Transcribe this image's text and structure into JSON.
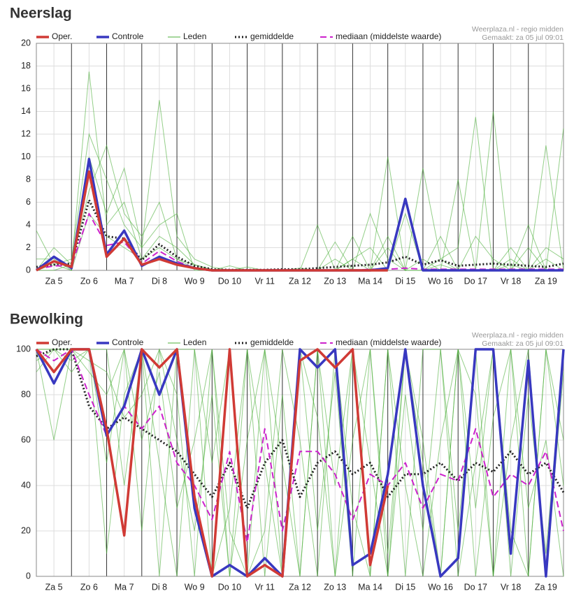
{
  "chart_data": [
    {
      "type": "line",
      "title": "Neerslag",
      "source": "Weerplaza.nl - regio midden",
      "created": "Gemaakt: za 05 jul 09:01",
      "days": [
        "Za 5",
        "Zo 6",
        "Ma 7",
        "Di 8",
        "Wo 9",
        "Do 10",
        "Vr 11",
        "Za 12",
        "Zo 13",
        "Ma 14",
        "Di 15",
        "Wo 16",
        "Do 17",
        "Vr 18",
        "Za 19"
      ],
      "ylim": [
        0,
        20
      ],
      "yticks": [
        0,
        2,
        4,
        6,
        8,
        10,
        12,
        14,
        16,
        18,
        20
      ],
      "grid": true,
      "series": [
        {
          "name": "Oper.",
          "color": "#d03a35",
          "dash": "solid",
          "values": [
            0,
            0.8,
            0.3,
            8.7,
            1.2,
            2.8,
            0.5,
            1.0,
            0.5,
            0.2,
            0,
            0,
            0,
            0,
            0,
            0,
            0,
            0,
            0,
            0,
            0,
            null,
            null,
            null,
            null,
            null,
            null,
            null,
            null,
            null,
            null
          ]
        },
        {
          "name": "Controle",
          "color": "#3838c0",
          "dash": "solid",
          "values": [
            0,
            1.2,
            0.2,
            9.8,
            1.4,
            3.5,
            0.4,
            1.2,
            0.6,
            0.2,
            0,
            0,
            0,
            0,
            0,
            0,
            0,
            0,
            0,
            0,
            0.2,
            6.3,
            0,
            0,
            0,
            0,
            0,
            0,
            0,
            0,
            0
          ]
        },
        {
          "name": "gemiddelde",
          "color": "#222222",
          "dash": "dotted",
          "values": [
            0.3,
            0.5,
            0.6,
            6.2,
            3.0,
            2.8,
            0.9,
            2.3,
            1.2,
            0.4,
            0.1,
            0.05,
            0.05,
            0.05,
            0.1,
            0.1,
            0.2,
            0.3,
            0.4,
            0.5,
            0.7,
            1.2,
            0.5,
            0.9,
            0.4,
            0.5,
            0.6,
            0.5,
            0.4,
            0.3,
            0.6
          ]
        },
        {
          "name": "mediaan (middelste waarde)",
          "color": "#cc22cc",
          "dash": "dashed",
          "values": [
            0.1,
            0.4,
            0.4,
            5.0,
            2.2,
            2.5,
            0.6,
            1.7,
            0.8,
            0.2,
            0,
            0,
            0,
            0,
            0,
            0,
            0,
            0,
            0,
            0.1,
            0.1,
            0.2,
            0.1,
            0.1,
            0.1,
            0.1,
            0.1,
            0.1,
            0.1,
            0.1,
            0.1
          ]
        }
      ],
      "members": {
        "name": "Leden",
        "color": "#4caf3a",
        "values": [
          [
            0,
            2,
            0.5,
            17.5,
            4,
            6,
            1,
            3,
            2,
            0.5,
            0,
            0,
            0,
            0,
            0,
            0,
            0,
            0,
            1,
            0,
            3,
            0,
            9,
            1,
            2,
            13.5,
            0,
            2,
            0,
            1,
            0
          ],
          [
            3.5,
            0.5,
            1,
            12,
            8,
            4,
            2,
            15,
            3,
            1,
            0.3,
            0,
            0.3,
            0,
            0,
            0,
            4,
            0,
            1,
            2,
            0,
            5,
            0,
            1,
            0,
            3,
            1,
            0,
            2,
            0,
            12.5
          ],
          [
            0,
            0,
            0.5,
            7,
            11,
            5,
            3,
            6,
            1,
            0.2,
            0,
            0.4,
            0,
            0,
            0,
            0,
            0,
            2.5,
            0,
            5,
            1,
            0,
            0,
            0.5,
            0,
            0,
            14,
            0,
            4,
            0,
            0
          ],
          [
            1,
            1,
            0,
            10,
            5,
            9,
            2,
            4,
            5,
            0,
            0,
            0,
            0,
            0,
            0,
            0,
            0,
            0,
            3,
            0,
            10,
            0,
            1,
            0,
            8,
            0,
            0,
            1,
            0,
            11,
            0
          ],
          [
            0,
            0.5,
            0,
            5,
            3,
            2,
            1,
            2,
            1,
            0.5,
            0.1,
            0,
            0,
            0,
            0,
            0.2,
            0,
            1,
            0,
            0,
            2,
            0,
            0,
            3,
            0,
            0,
            0,
            0.5,
            0,
            2,
            1
          ]
        ]
      }
    },
    {
      "type": "line",
      "title": "Bewolking",
      "source": "Weerplaza.nl - regio midden",
      "created": "Gemaakt: za 05 jul 09:01",
      "days": [
        "Za 5",
        "Zo 6",
        "Ma 7",
        "Di 8",
        "Wo 9",
        "Do 10",
        "Vr 11",
        "Za 12",
        "Zo 13",
        "Ma 14",
        "Di 15",
        "Wo 16",
        "Do 17",
        "Vr 18",
        "Za 19"
      ],
      "ylim": [
        0,
        100
      ],
      "yticks": [
        0,
        20,
        40,
        60,
        80,
        100
      ],
      "grid": true,
      "series": [
        {
          "name": "Oper.",
          "color": "#d03a35",
          "dash": "solid",
          "values": [
            100,
            90,
            100,
            100,
            65,
            18,
            100,
            92,
            100,
            35,
            0,
            100,
            0,
            5,
            0,
            95,
            100,
            92,
            100,
            5,
            40,
            null,
            null,
            null,
            null,
            null,
            null,
            null,
            null,
            null,
            null
          ]
        },
        {
          "name": "Controle",
          "color": "#3838c0",
          "dash": "solid",
          "values": [
            100,
            85,
            100,
            100,
            62,
            75,
            100,
            80,
            100,
            30,
            0,
            5,
            0,
            8,
            0,
            100,
            92,
            100,
            5,
            10,
            45,
            100,
            40,
            0,
            8,
            100,
            100,
            10,
            95,
            0,
            100
          ]
        },
        {
          "name": "gemiddelde",
          "color": "#222222",
          "dash": "dotted",
          "values": [
            97,
            100,
            100,
            75,
            65,
            70,
            65,
            60,
            55,
            45,
            35,
            50,
            30,
            50,
            60,
            35,
            50,
            55,
            45,
            50,
            35,
            45,
            45,
            50,
            42,
            50,
            46,
            55,
            45,
            50,
            37
          ]
        },
        {
          "name": "mediaan (middelste waarde)",
          "color": "#cc22cc",
          "dash": "dashed",
          "values": [
            100,
            95,
            100,
            80,
            62,
            75,
            65,
            75,
            50,
            40,
            25,
            55,
            15,
            65,
            20,
            55,
            55,
            45,
            25,
            45,
            40,
            50,
            30,
            45,
            42,
            65,
            35,
            45,
            40,
            55,
            20
          ]
        }
      ],
      "members": {
        "name": "Leden",
        "color": "#4caf3a",
        "values": [
          [
            90,
            100,
            95,
            100,
            50,
            100,
            20,
            100,
            80,
            0,
            100,
            0,
            60,
            100,
            0,
            100,
            20,
            90,
            0,
            100,
            10,
            100,
            50,
            0,
            100,
            30,
            100,
            0,
            80,
            10,
            100
          ],
          [
            100,
            60,
            100,
            100,
            100,
            40,
            100,
            0,
            100,
            100,
            0,
            30,
            100,
            0,
            80,
            0,
            100,
            40,
            100,
            0,
            100,
            0,
            100,
            100,
            20,
            100,
            0,
            60,
            100,
            0,
            90
          ],
          [
            95,
            100,
            100,
            90,
            80,
            100,
            60,
            90,
            30,
            60,
            100,
            20,
            0,
            100,
            50,
            0,
            100,
            0,
            60,
            100,
            0,
            80,
            20,
            100,
            0,
            50,
            100,
            20,
            0,
            100,
            40
          ],
          [
            100,
            100,
            90,
            100,
            10,
            80,
            100,
            50,
            0,
            100,
            50,
            100,
            0,
            20,
            100,
            60,
            0,
            100,
            30,
            0,
            100,
            40,
            0,
            60,
            100,
            0,
            70,
            100,
            30,
            60,
            0
          ],
          [
            100,
            100,
            100,
            95,
            90,
            70,
            80,
            100,
            60,
            20,
            80,
            0,
            100,
            50,
            0,
            100,
            70,
            0,
            100,
            50,
            0,
            100,
            60,
            0,
            100,
            80,
            0,
            100,
            0,
            100,
            60
          ]
        ]
      }
    }
  ]
}
